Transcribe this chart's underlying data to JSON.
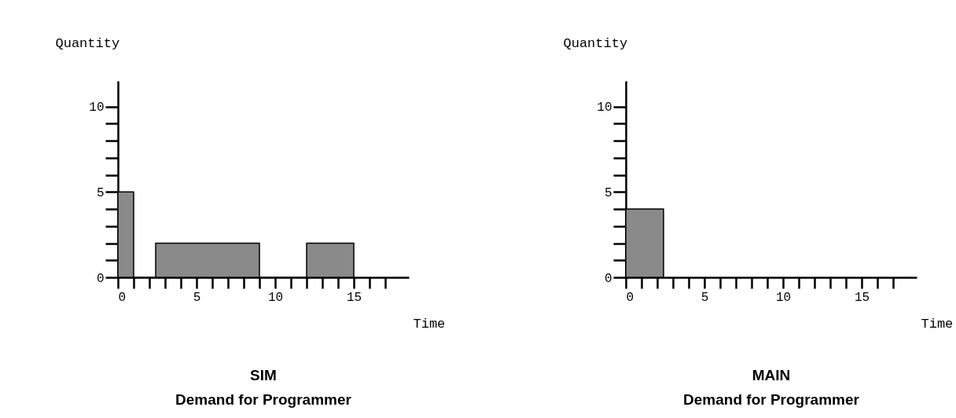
{
  "chart_data": [
    {
      "type": "area",
      "title": "SIM",
      "subtitle": "Demand for Programmer",
      "xlabel": "Time",
      "ylabel": "Quantity",
      "x": [
        0,
        1,
        1,
        2.4,
        2.4,
        9,
        9,
        12,
        12,
        15,
        15
      ],
      "values": [
        5,
        5,
        0,
        0,
        2,
        2,
        0,
        0,
        2,
        2,
        0
      ],
      "color": "#8a8a8a",
      "xlim": [
        0,
        18.5
      ],
      "ylim": [
        0,
        11.5
      ],
      "xticks": [
        0,
        {
          "value": 1,
          "label": null
        },
        {
          "value": 2,
          "label": null
        },
        {
          "value": 3,
          "label": null
        },
        {
          "value": 4,
          "label": null
        },
        5,
        {
          "value": 6,
          "label": null
        },
        {
          "value": 7,
          "label": null
        },
        {
          "value": 8,
          "label": null
        },
        {
          "value": 9,
          "label": null
        },
        10,
        {
          "value": 11,
          "label": null
        },
        {
          "value": 12,
          "label": null
        },
        {
          "value": 13,
          "label": null
        },
        {
          "value": 14,
          "label": null
        },
        15,
        {
          "value": 16,
          "label": null
        },
        {
          "value": 17,
          "label": null
        }
      ],
      "yticks": [
        0,
        {
          "value": 1,
          "label": null
        },
        {
          "value": 2,
          "label": null
        },
        {
          "value": 3,
          "label": null
        },
        {
          "value": 4,
          "label": null
        },
        5,
        {
          "value": 6,
          "label": null
        },
        {
          "value": 7,
          "label": null
        },
        {
          "value": 8,
          "label": null
        },
        {
          "value": 9,
          "label": null
        },
        10
      ]
    },
    {
      "type": "area",
      "title": "MAIN",
      "subtitle": "Demand for Programmer",
      "xlabel": "Time",
      "ylabel": "Quantity",
      "x": [
        0,
        2.4,
        2.4
      ],
      "values": [
        4,
        4,
        0
      ],
      "color": "#8a8a8a",
      "xlim": [
        0,
        18.5
      ],
      "ylim": [
        0,
        11.5
      ],
      "xticks": [
        0,
        {
          "value": 1,
          "label": null
        },
        {
          "value": 2,
          "label": null
        },
        {
          "value": 3,
          "label": null
        },
        {
          "value": 4,
          "label": null
        },
        5,
        {
          "value": 6,
          "label": null
        },
        {
          "value": 7,
          "label": null
        },
        {
          "value": 8,
          "label": null
        },
        {
          "value": 9,
          "label": null
        },
        10,
        {
          "value": 11,
          "label": null
        },
        {
          "value": 12,
          "label": null
        },
        {
          "value": 13,
          "label": null
        },
        {
          "value": 14,
          "label": null
        },
        15,
        {
          "value": 16,
          "label": null
        },
        {
          "value": 17,
          "label": null
        }
      ],
      "yticks": [
        0,
        {
          "value": 1,
          "label": null
        },
        {
          "value": 2,
          "label": null
        },
        {
          "value": 3,
          "label": null
        },
        {
          "value": 4,
          "label": null
        },
        5,
        {
          "value": 6,
          "label": null
        },
        {
          "value": 7,
          "label": null
        },
        {
          "value": 8,
          "label": null
        },
        {
          "value": 9,
          "label": null
        },
        10
      ]
    }
  ]
}
